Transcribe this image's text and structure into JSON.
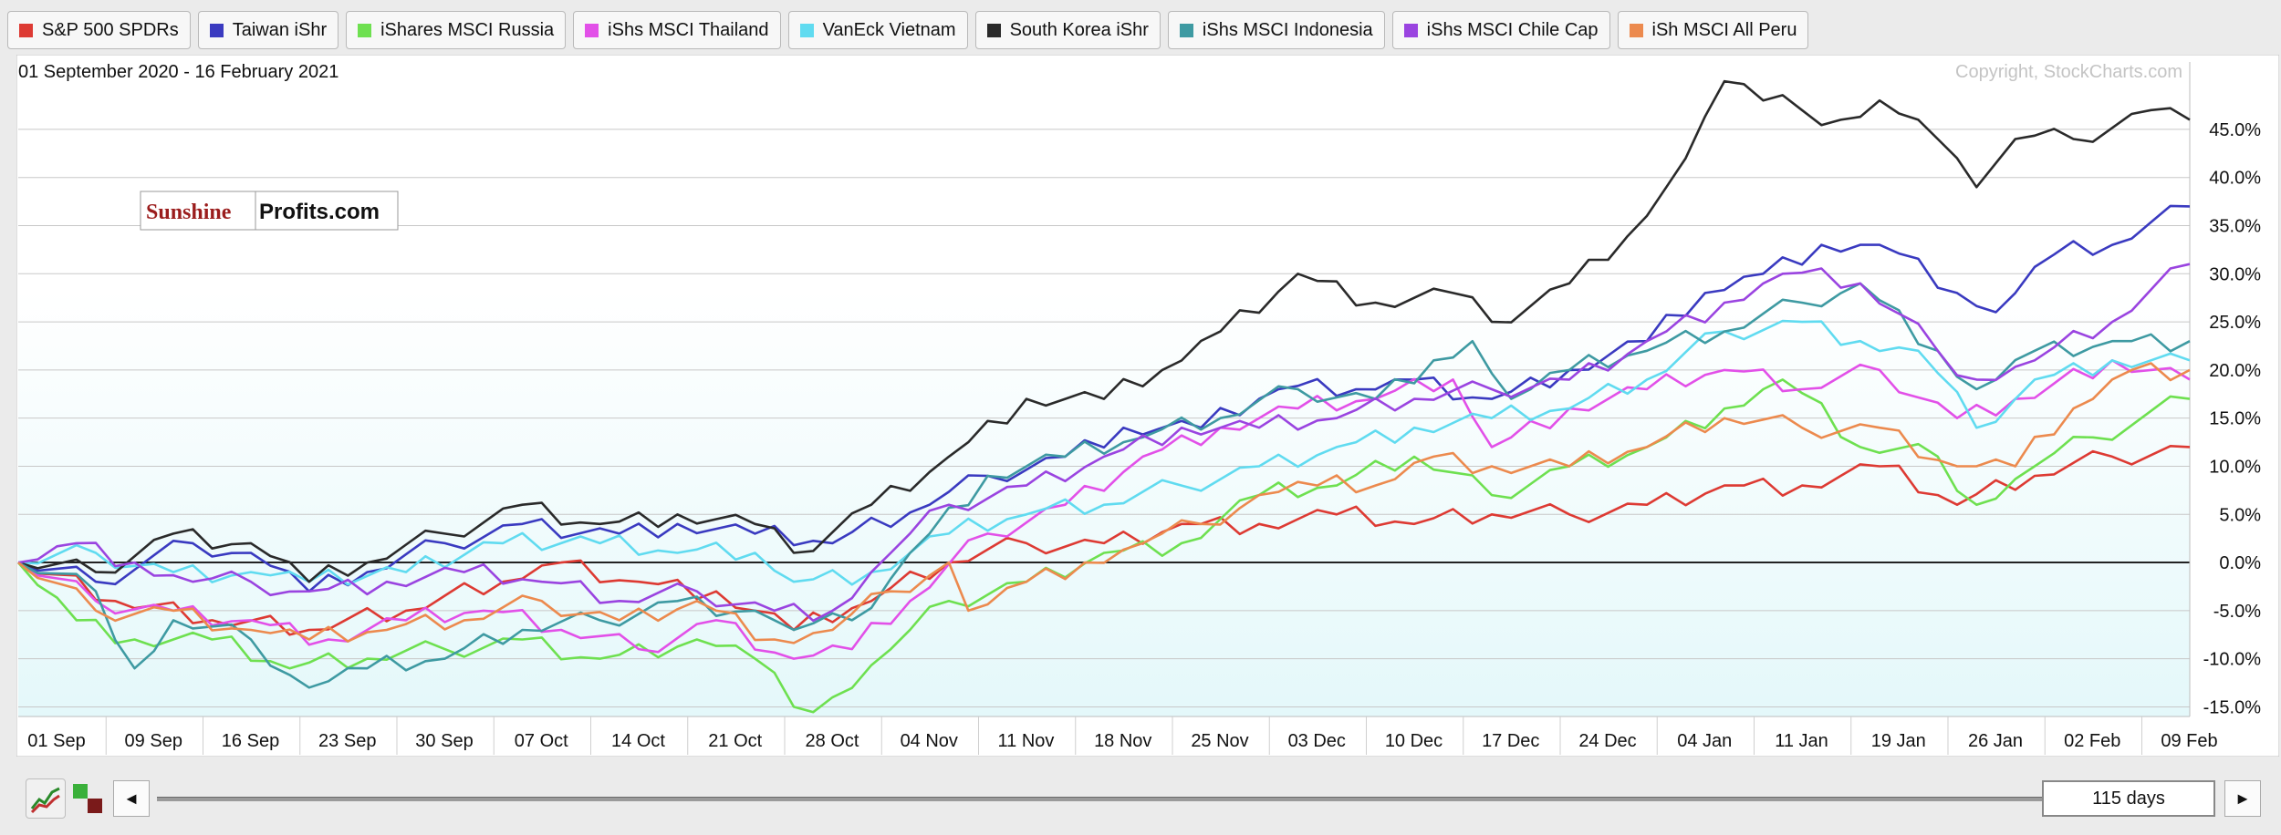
{
  "legend": [
    {
      "label": "S&P 500 SPDRs",
      "color": "#dd3a33"
    },
    {
      "label": "Taiwan iShr",
      "color": "#3a3ac0"
    },
    {
      "label": "iShares MSCI Russia",
      "color": "#6ee050"
    },
    {
      "label": "iShs MSCI Thailand",
      "color": "#e250e8"
    },
    {
      "label": "VanEck Vietnam",
      "color": "#60dbf0"
    },
    {
      "label": "South Korea iShr",
      "color": "#2a2a2a"
    },
    {
      "label": "iShs MSCI Indonesia",
      "color": "#3e9aa2"
    },
    {
      "label": "iShs MSCI Chile Cap",
      "color": "#9a44e0"
    },
    {
      "label": "iSh MSCI All Peru",
      "color": "#ec8a4e"
    }
  ],
  "watermark": {
    "part1": "Sunshine",
    "part2": "Profits.com"
  },
  "copyright": "Copyright, StockCharts.com",
  "scroll": {
    "days_label": "115 days",
    "left_arrow": "◄",
    "right_arrow": "►"
  },
  "chart_data": {
    "type": "line",
    "title": "01 September 2020 - 16 February 2021",
    "ylim": [
      -16,
      52
    ],
    "y_ticks": [
      -15,
      -10,
      -5,
      0,
      5,
      10,
      15,
      20,
      25,
      30,
      35,
      40,
      45
    ],
    "y_tick_labels": [
      "-15.0%",
      "-10.0%",
      "-5.0%",
      "0.0%",
      "5.0%",
      "10.0%",
      "15.0%",
      "20.0%",
      "25.0%",
      "30.0%",
      "35.0%",
      "40.0%",
      "45.0%"
    ],
    "x_tick_labels": [
      "01 Sep",
      "09 Sep",
      "16 Sep",
      "23 Sep",
      "30 Sep",
      "07 Oct",
      "14 Oct",
      "21 Oct",
      "28 Oct",
      "04 Nov",
      "11 Nov",
      "18 Nov",
      "25 Nov",
      "03 Dec",
      "10 Dec",
      "17 Dec",
      "24 Dec",
      "04 Jan",
      "11 Jan",
      "19 Jan",
      "26 Jan",
      "02 Feb",
      "09 Feb"
    ],
    "x_tick_index": [
      0,
      5,
      10,
      15,
      20,
      25,
      30,
      35,
      40,
      45,
      50,
      55,
      60,
      65,
      70,
      75,
      80,
      85,
      90,
      95,
      100,
      105,
      110
    ],
    "x_count": 113,
    "series": [
      {
        "name": "S&P 500 SPDRs",
        "color": "#dd3a33",
        "keys": [
          [
            0,
            0
          ],
          [
            5,
            -4
          ],
          [
            10,
            -6
          ],
          [
            15,
            -7
          ],
          [
            20,
            -5
          ],
          [
            25,
            -2
          ],
          [
            28,
            0
          ],
          [
            32,
            -2
          ],
          [
            36,
            -3
          ],
          [
            40,
            -7
          ],
          [
            44,
            -4
          ],
          [
            48,
            0
          ],
          [
            52,
            2
          ],
          [
            56,
            2
          ],
          [
            60,
            4
          ],
          [
            64,
            4
          ],
          [
            68,
            5
          ],
          [
            72,
            4
          ],
          [
            76,
            5
          ],
          [
            80,
            5
          ],
          [
            84,
            6
          ],
          [
            88,
            8
          ],
          [
            92,
            8
          ],
          [
            96,
            10
          ],
          [
            100,
            6
          ],
          [
            104,
            9
          ],
          [
            108,
            11
          ],
          [
            112,
            12
          ]
        ]
      },
      {
        "name": "Taiwan iShr",
        "color": "#3a3ac0",
        "keys": [
          [
            0,
            0
          ],
          [
            4,
            -2
          ],
          [
            9,
            2
          ],
          [
            12,
            1
          ],
          [
            15,
            -3
          ],
          [
            18,
            -1
          ],
          [
            22,
            2
          ],
          [
            26,
            4
          ],
          [
            31,
            3
          ],
          [
            34,
            4
          ],
          [
            38,
            3
          ],
          [
            42,
            2
          ],
          [
            47,
            6
          ],
          [
            50,
            9
          ],
          [
            54,
            11
          ],
          [
            57,
            14
          ],
          [
            61,
            14
          ],
          [
            65,
            18
          ],
          [
            69,
            18
          ],
          [
            72,
            19
          ],
          [
            76,
            17
          ],
          [
            80,
            20
          ],
          [
            84,
            23
          ],
          [
            87,
            28
          ],
          [
            90,
            30
          ],
          [
            93,
            33
          ],
          [
            96,
            33
          ],
          [
            100,
            28
          ],
          [
            102,
            26
          ],
          [
            105,
            32
          ],
          [
            108,
            33
          ],
          [
            112,
            37
          ]
        ]
      },
      {
        "name": "iShares MSCI Russia",
        "color": "#6ee050",
        "keys": [
          [
            0,
            0
          ],
          [
            3,
            -6
          ],
          [
            6,
            -8
          ],
          [
            10,
            -8
          ],
          [
            14,
            -11
          ],
          [
            18,
            -10
          ],
          [
            22,
            -9
          ],
          [
            26,
            -8
          ],
          [
            30,
            -10
          ],
          [
            35,
            -8
          ],
          [
            38,
            -10
          ],
          [
            40,
            -15
          ],
          [
            42,
            -14
          ],
          [
            45,
            -9
          ],
          [
            48,
            -4
          ],
          [
            52,
            -2
          ],
          [
            56,
            1
          ],
          [
            60,
            2
          ],
          [
            64,
            7
          ],
          [
            68,
            8
          ],
          [
            72,
            11
          ],
          [
            76,
            7
          ],
          [
            80,
            10
          ],
          [
            84,
            12
          ],
          [
            88,
            16
          ],
          [
            91,
            19
          ],
          [
            95,
            12
          ],
          [
            99,
            11
          ],
          [
            101,
            6
          ],
          [
            104,
            10
          ],
          [
            107,
            13
          ],
          [
            112,
            17
          ]
        ]
      },
      {
        "name": "iShs MSCI Thailand",
        "color": "#e250e8",
        "keys": [
          [
            0,
            0
          ],
          [
            4,
            -4
          ],
          [
            8,
            -5
          ],
          [
            12,
            -6
          ],
          [
            16,
            -8
          ],
          [
            20,
            -6
          ],
          [
            24,
            -5
          ],
          [
            28,
            -7
          ],
          [
            32,
            -9
          ],
          [
            36,
            -6
          ],
          [
            40,
            -10
          ],
          [
            43,
            -9
          ],
          [
            46,
            -4
          ],
          [
            50,
            3
          ],
          [
            54,
            6
          ],
          [
            58,
            11
          ],
          [
            62,
            14
          ],
          [
            66,
            16
          ],
          [
            70,
            17
          ],
          [
            74,
            19
          ],
          [
            76,
            12
          ],
          [
            80,
            16
          ],
          [
            84,
            18
          ],
          [
            88,
            20
          ],
          [
            92,
            18
          ],
          [
            96,
            20
          ],
          [
            100,
            15
          ],
          [
            103,
            17
          ],
          [
            108,
            21
          ],
          [
            112,
            19
          ]
        ]
      },
      {
        "name": "VanEck Vietnam",
        "color": "#60dbf0",
        "keys": [
          [
            0,
            0
          ],
          [
            4,
            1
          ],
          [
            8,
            -1
          ],
          [
            12,
            -1
          ],
          [
            15,
            -2
          ],
          [
            20,
            -1
          ],
          [
            25,
            2
          ],
          [
            30,
            2
          ],
          [
            34,
            1
          ],
          [
            38,
            1
          ],
          [
            40,
            -2
          ],
          [
            44,
            -1
          ],
          [
            48,
            3
          ],
          [
            52,
            5
          ],
          [
            56,
            6
          ],
          [
            60,
            8
          ],
          [
            64,
            10
          ],
          [
            68,
            12
          ],
          [
            72,
            14
          ],
          [
            76,
            15
          ],
          [
            80,
            16
          ],
          [
            84,
            19
          ],
          [
            88,
            24
          ],
          [
            92,
            25
          ],
          [
            95,
            23
          ],
          [
            98,
            22
          ],
          [
            101,
            14
          ],
          [
            104,
            19
          ],
          [
            108,
            21
          ],
          [
            112,
            21
          ]
        ]
      },
      {
        "name": "South Korea iShr",
        "color": "#2a2a2a",
        "keys": [
          [
            0,
            0
          ],
          [
            4,
            -1
          ],
          [
            8,
            3
          ],
          [
            12,
            2
          ],
          [
            15,
            -2
          ],
          [
            18,
            0
          ],
          [
            22,
            3
          ],
          [
            26,
            6
          ],
          [
            30,
            4
          ],
          [
            34,
            5
          ],
          [
            38,
            4
          ],
          [
            40,
            1
          ],
          [
            44,
            6
          ],
          [
            48,
            11
          ],
          [
            52,
            17
          ],
          [
            56,
            17
          ],
          [
            59,
            20
          ],
          [
            62,
            24
          ],
          [
            66,
            30
          ],
          [
            70,
            27
          ],
          [
            74,
            28
          ],
          [
            76,
            25
          ],
          [
            80,
            29
          ],
          [
            84,
            36
          ],
          [
            86,
            42
          ],
          [
            88,
            50
          ],
          [
            90,
            48
          ],
          [
            92,
            47
          ],
          [
            94,
            46
          ],
          [
            96,
            48
          ],
          [
            98,
            46
          ],
          [
            100,
            42
          ],
          [
            101,
            39
          ],
          [
            103,
            44
          ],
          [
            106,
            44
          ],
          [
            110,
            47
          ],
          [
            112,
            46
          ]
        ]
      },
      {
        "name": "iShs MSCI Indonesia",
        "color": "#3e9aa2",
        "keys": [
          [
            0,
            0
          ],
          [
            4,
            -3
          ],
          [
            6,
            -11
          ],
          [
            8,
            -6
          ],
          [
            12,
            -8
          ],
          [
            15,
            -13
          ],
          [
            18,
            -11
          ],
          [
            22,
            -10
          ],
          [
            26,
            -7
          ],
          [
            30,
            -6
          ],
          [
            34,
            -4
          ],
          [
            38,
            -5
          ],
          [
            40,
            -7
          ],
          [
            43,
            -6
          ],
          [
            46,
            1
          ],
          [
            50,
            9
          ],
          [
            54,
            11
          ],
          [
            58,
            13
          ],
          [
            62,
            15
          ],
          [
            66,
            18
          ],
          [
            70,
            17
          ],
          [
            73,
            21
          ],
          [
            75,
            23
          ],
          [
            77,
            17
          ],
          [
            80,
            20
          ],
          [
            84,
            22
          ],
          [
            88,
            24
          ],
          [
            92,
            27
          ],
          [
            95,
            29
          ],
          [
            99,
            22
          ],
          [
            101,
            18
          ],
          [
            104,
            22
          ],
          [
            108,
            23
          ],
          [
            112,
            23
          ]
        ]
      },
      {
        "name": "iShs MSCI Chile Cap",
        "color": "#9a44e0",
        "keys": [
          [
            0,
            0
          ],
          [
            3,
            2
          ],
          [
            6,
            0
          ],
          [
            9,
            -2
          ],
          [
            12,
            -2
          ],
          [
            15,
            -3
          ],
          [
            19,
            -2
          ],
          [
            23,
            -1
          ],
          [
            27,
            -2
          ],
          [
            31,
            -4
          ],
          [
            35,
            -3
          ],
          [
            39,
            -5
          ],
          [
            42,
            -5
          ],
          [
            45,
            1
          ],
          [
            48,
            6
          ],
          [
            52,
            8
          ],
          [
            56,
            11
          ],
          [
            60,
            14
          ],
          [
            64,
            14
          ],
          [
            68,
            15
          ],
          [
            72,
            17
          ],
          [
            76,
            18
          ],
          [
            80,
            19
          ],
          [
            84,
            23
          ],
          [
            88,
            27
          ],
          [
            91,
            30
          ],
          [
            95,
            29
          ],
          [
            99,
            22
          ],
          [
            101,
            19
          ],
          [
            104,
            21
          ],
          [
            108,
            25
          ],
          [
            112,
            31
          ]
        ]
      },
      {
        "name": "iSh MSCI All Peru",
        "color": "#ec8a4e",
        "keys": [
          [
            0,
            0
          ],
          [
            4,
            -5
          ],
          [
            8,
            -5
          ],
          [
            12,
            -7
          ],
          [
            15,
            -8
          ],
          [
            19,
            -7
          ],
          [
            23,
            -6
          ],
          [
            27,
            -4
          ],
          [
            31,
            -6
          ],
          [
            35,
            -4
          ],
          [
            39,
            -8
          ],
          [
            42,
            -7
          ],
          [
            45,
            -3
          ],
          [
            48,
            0
          ],
          [
            49,
            -5
          ],
          [
            52,
            -2
          ],
          [
            55,
            0
          ],
          [
            58,
            2
          ],
          [
            61,
            4
          ],
          [
            64,
            7
          ],
          [
            67,
            8
          ],
          [
            70,
            8
          ],
          [
            73,
            11
          ],
          [
            76,
            10
          ],
          [
            80,
            10
          ],
          [
            84,
            12
          ],
          [
            88,
            15
          ],
          [
            92,
            14
          ],
          [
            96,
            14
          ],
          [
            100,
            10
          ],
          [
            103,
            10
          ],
          [
            106,
            16
          ],
          [
            109,
            20
          ],
          [
            112,
            20
          ]
        ]
      }
    ]
  }
}
